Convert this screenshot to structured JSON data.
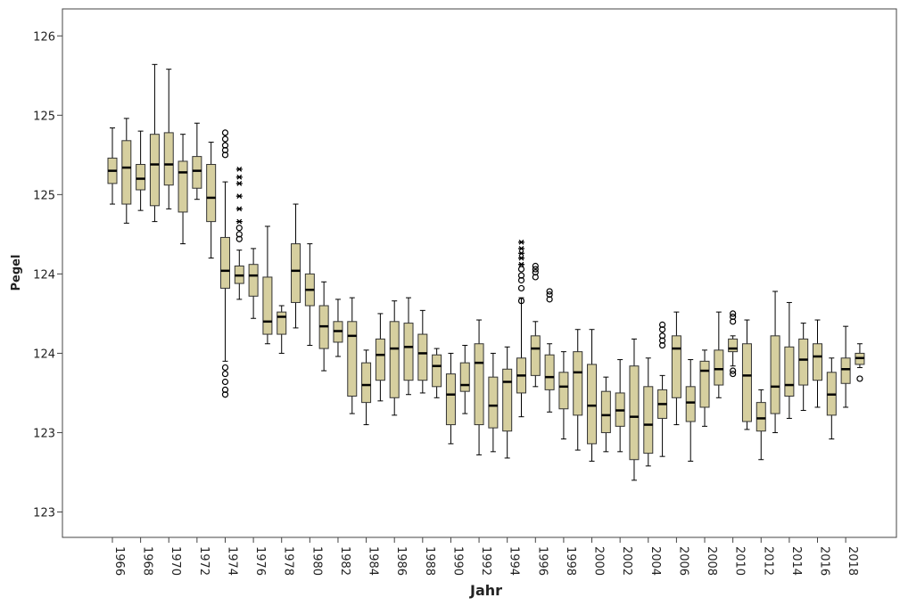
{
  "chart_data": {
    "type": "box",
    "x_label": "Jahr",
    "y_label": "Pegel",
    "color": "#d6cf9f",
    "categories": [
      "1966",
      null,
      "1968",
      null,
      "1970",
      null,
      "1972",
      null,
      "1974",
      null,
      "1976",
      null,
      "1978",
      null,
      "1980",
      null,
      "1982",
      null,
      "1984",
      null,
      "1986",
      null,
      "1988",
      null,
      "1990",
      null,
      "1992",
      null,
      "1994",
      null,
      "1996",
      null,
      "1998",
      null,
      "2000",
      null,
      "2002",
      null,
      "2004",
      null,
      "2006",
      null,
      "2008",
      null,
      "2010",
      null,
      "2012",
      null,
      "2014",
      null,
      "2016",
      null,
      "2018",
      null
    ],
    "min": [
      124.69,
      124.57,
      124.65,
      124.58,
      124.66,
      124.44,
      124.72,
      124.35,
      123.7,
      124.09,
      123.97,
      123.81,
      123.75,
      123.91,
      123.8,
      123.64,
      123.73,
      123.37,
      123.3,
      123.45,
      123.36,
      123.49,
      123.5,
      123.47,
      123.18,
      123.37,
      123.11,
      123.13,
      123.09,
      123.35,
      123.54,
      123.38,
      123.21,
      123.14,
      123.07,
      123.13,
      123.13,
      122.95,
      123.04,
      123.1,
      123.3,
      123.07,
      123.29,
      123.47,
      123.67,
      123.27,
      123.08,
      123.25,
      123.34,
      123.39,
      123.41,
      123.21,
      123.41,
      123.66
    ],
    "q1": [
      124.82,
      124.69,
      124.78,
      124.68,
      124.81,
      124.64,
      124.79,
      124.58,
      124.16,
      124.19,
      124.11,
      123.87,
      123.87,
      124.07,
      124.05,
      123.78,
      123.82,
      123.48,
      123.44,
      123.58,
      123.47,
      123.58,
      123.58,
      123.54,
      123.3,
      123.51,
      123.3,
      123.28,
      123.26,
      123.5,
      123.61,
      123.52,
      123.4,
      123.36,
      123.18,
      123.25,
      123.29,
      123.08,
      123.12,
      123.34,
      123.47,
      123.32,
      123.41,
      123.55,
      123.76,
      123.32,
      123.26,
      123.37,
      123.48,
      123.55,
      123.58,
      123.36,
      123.56,
      123.68
    ],
    "median": [
      124.9,
      124.92,
      124.85,
      124.94,
      124.94,
      124.89,
      124.9,
      124.73,
      124.27,
      124.24,
      124.24,
      123.95,
      123.98,
      124.27,
      124.15,
      123.92,
      123.89,
      123.86,
      123.55,
      123.74,
      123.78,
      123.79,
      123.75,
      123.67,
      123.49,
      123.55,
      123.69,
      123.42,
      123.57,
      123.61,
      123.78,
      123.6,
      123.54,
      123.63,
      123.42,
      123.36,
      123.39,
      123.35,
      123.3,
      123.43,
      123.78,
      123.44,
      123.64,
      123.65,
      123.78,
      123.61,
      123.34,
      123.54,
      123.55,
      123.71,
      123.73,
      123.49,
      123.65,
      123.72
    ],
    "q3": [
      124.98,
      125.09,
      124.94,
      125.13,
      125.14,
      124.96,
      124.99,
      124.94,
      124.48,
      124.3,
      124.31,
      124.23,
      124.01,
      124.44,
      124.25,
      124.05,
      123.95,
      123.95,
      123.69,
      123.84,
      123.95,
      123.94,
      123.87,
      123.74,
      123.62,
      123.69,
      123.81,
      123.6,
      123.65,
      123.72,
      123.86,
      123.74,
      123.63,
      123.76,
      123.68,
      123.51,
      123.5,
      123.67,
      123.54,
      123.52,
      123.86,
      123.54,
      123.7,
      123.77,
      123.84,
      123.81,
      123.44,
      123.86,
      123.79,
      123.84,
      123.81,
      123.63,
      123.72,
      123.75
    ],
    "max": [
      125.17,
      125.23,
      125.15,
      125.57,
      125.54,
      125.13,
      125.2,
      125.08,
      124.83,
      124.4,
      124.41,
      124.55,
      124.05,
      124.69,
      124.44,
      124.2,
      124.09,
      124.1,
      123.77,
      124.0,
      124.08,
      124.1,
      124.02,
      123.78,
      123.75,
      123.8,
      123.96,
      123.75,
      123.79,
      124.1,
      123.95,
      123.81,
      123.76,
      123.9,
      123.9,
      123.6,
      123.71,
      123.84,
      123.72,
      123.61,
      124.01,
      123.71,
      123.77,
      124.01,
      123.86,
      123.96,
      123.52,
      124.14,
      124.07,
      123.94,
      123.96,
      123.72,
      123.92,
      123.81
    ],
    "outliers": [
      [],
      [],
      [],
      [],
      [],
      [],
      [],
      [],
      [
        125.14,
        125.1,
        125.06,
        125.03,
        125.0,
        123.66,
        123.62,
        123.57,
        123.52,
        123.49
      ],
      [
        124.54,
        124.5,
        124.47
      ],
      [],
      [],
      [],
      [],
      [],
      [],
      [],
      [],
      [],
      [],
      [],
      [],
      [],
      [],
      [],
      [],
      [],
      [],
      [],
      [
        124.28,
        124.24,
        124.21,
        124.16,
        124.08
      ],
      [
        124.3,
        124.28,
        124.26,
        124.23
      ],
      [
        124.14,
        124.12,
        124.09
      ],
      [],
      [],
      [],
      [],
      [],
      [],
      [],
      [
        123.93,
        123.9,
        123.86,
        123.83,
        123.8
      ],
      [],
      [],
      [],
      [],
      [
        124.0,
        123.98,
        123.95,
        123.64,
        123.62
      ],
      [],
      [],
      [],
      [],
      [],
      [],
      [],
      [],
      [
        123.59
      ]
    ],
    "extremes": [
      [],
      [],
      [],
      [],
      [],
      [],
      [],
      [],
      [],
      [
        124.91,
        124.86,
        124.82,
        124.74,
        124.66,
        124.58
      ],
      [],
      [],
      [],
      [],
      [],
      [],
      [],
      [],
      [],
      [],
      [],
      [],
      [],
      [],
      [],
      [],
      [],
      [],
      [],
      [
        124.45,
        124.41,
        124.38,
        124.35,
        124.31
      ],
      [],
      [],
      [],
      [],
      [],
      [],
      [],
      [],
      [],
      [],
      [],
      [],
      [],
      [],
      [],
      [],
      [],
      [],
      [],
      [],
      [],
      [],
      [],
      []
    ],
    "ylim": [
      122.59,
      125.92
    ],
    "yticks": [
      {
        "value": 122.75,
        "label": "123"
      },
      {
        "value": 123.25,
        "label": "123"
      },
      {
        "value": 123.75,
        "label": "124"
      },
      {
        "value": 124.25,
        "label": "124"
      },
      {
        "value": 124.75,
        "label": "125"
      },
      {
        "value": 125.25,
        "label": "125"
      },
      {
        "value": 125.75,
        "label": "126"
      }
    ]
  }
}
